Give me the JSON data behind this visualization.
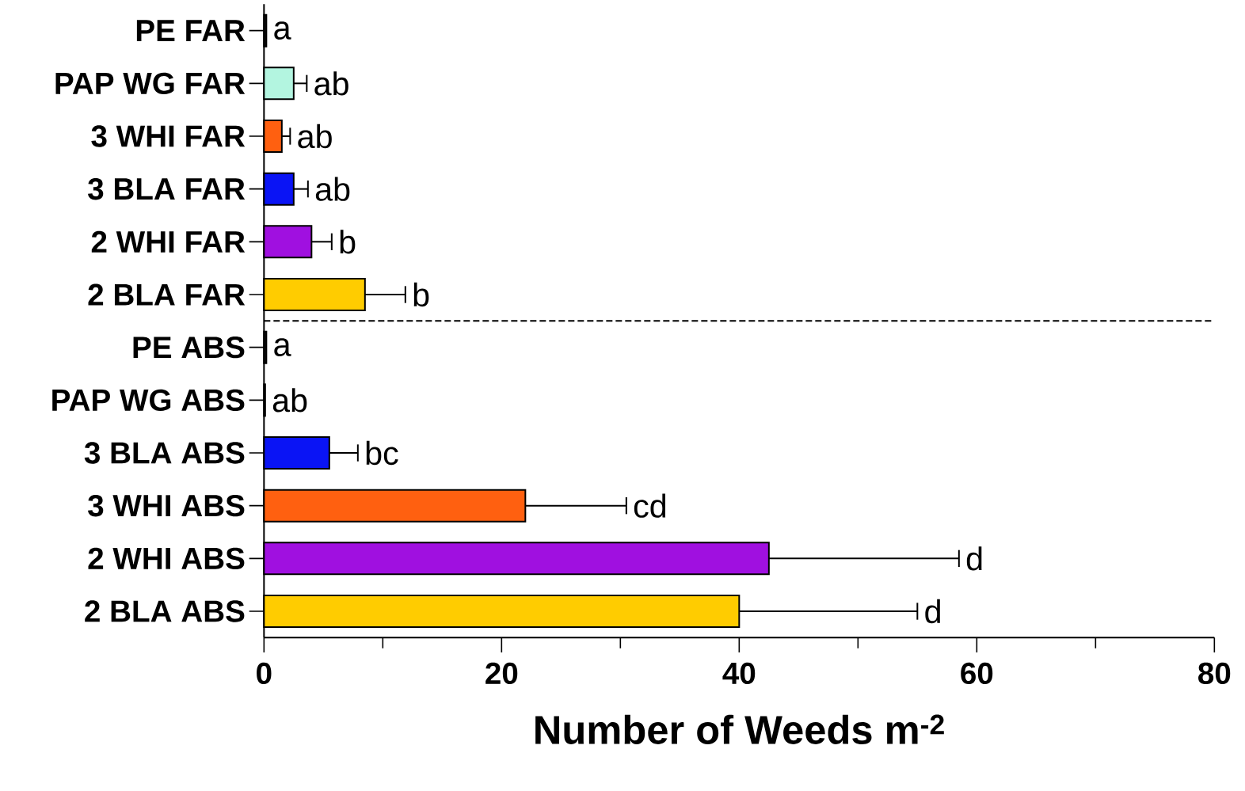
{
  "chart_data": {
    "type": "bar",
    "orientation": "horizontal",
    "xlabel": "Number of Weeds m$^{-2}$",
    "categories": [
      "PE FAR",
      "PAP WG FAR",
      "3 WHI FAR",
      "3 BLA FAR",
      "2 WHI FAR",
      "2 BLA FAR",
      "PE ABS",
      "PAP WG ABS",
      "3 BLA ABS",
      "3 WHI ABS",
      "2 WHI ABS",
      "2 BLA ABS"
    ],
    "values": [
      0.2,
      2.5,
      1.5,
      2.5,
      4,
      8.5,
      0.2,
      0.1,
      5.5,
      22,
      42.5,
      40
    ],
    "errors": [
      null,
      1.1,
      0.7,
      1.2,
      1.7,
      3.4,
      null,
      null,
      2.4,
      8.5,
      16,
      15
    ],
    "colors": [
      "#111111",
      "#b3f5e0",
      "#ff6010",
      "#0a14f5",
      "#a010e0",
      "#ffcc00",
      "#111111",
      "#b3f5e0",
      "#0a14f5",
      "#ff6010",
      "#a010e0",
      "#ffcc00"
    ],
    "xlim": [
      0,
      80
    ],
    "xticks": [
      0,
      {
        "value": 10,
        "label": null
      },
      20,
      {
        "value": 30,
        "label": null
      },
      40,
      {
        "value": 50,
        "label": null
      },
      60,
      {
        "value": 70,
        "label": null
      },
      80
    ],
    "annotations": [
      "a",
      "ab",
      "ab",
      "ab",
      "b",
      "b",
      "a",
      "ab",
      "bc",
      "cd",
      "d",
      "d"
    ]
  }
}
